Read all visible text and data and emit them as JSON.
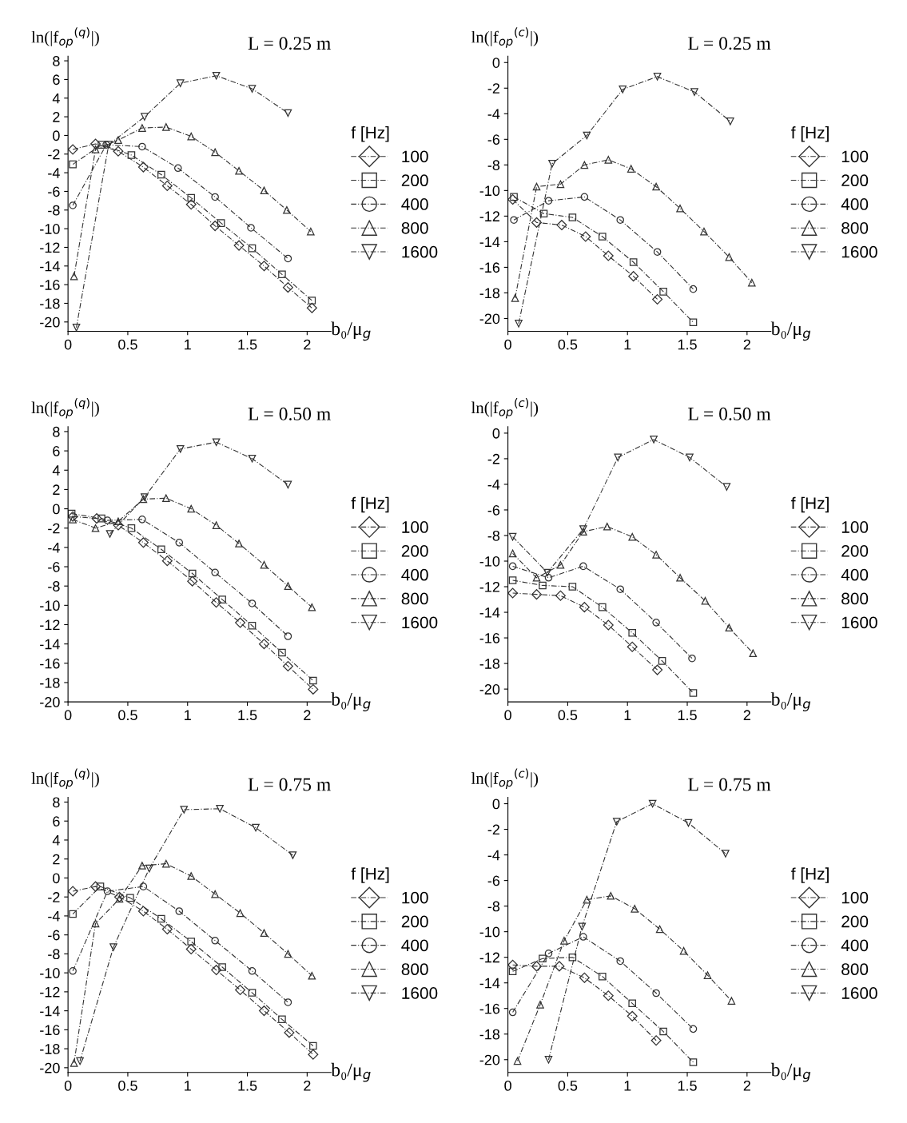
{
  "chart_data": [
    {
      "type": "line",
      "title": "L = 0.25 m",
      "ylabel": "ln(|f$_{op}$$^{(q)}$|)",
      "xlabel": "b₀/μ$_{g}$",
      "legend_title": "f [Hz]",
      "legend": "right",
      "line_style": "dashed",
      "grid": false,
      "xlim": [
        0,
        2.2
      ],
      "xticks": [
        0,
        0.5,
        1,
        1.5,
        2
      ],
      "ylim": [
        -21,
        8.5
      ],
      "yticks": [
        -20,
        -18,
        -16,
        -14,
        -12,
        -10,
        -8,
        -6,
        -4,
        -2,
        0,
        2,
        4,
        6,
        8
      ],
      "series": [
        {
          "name": "100",
          "color": "#333333",
          "marker": "diamond",
          "x": [
            0.04,
            0.23,
            0.42,
            0.63,
            0.83,
            1.03,
            1.23,
            1.43,
            1.64,
            1.84,
            2.04
          ],
          "values": [
            -1.5,
            -0.9,
            -1.7,
            -3.4,
            -5.4,
            -7.4,
            -9.7,
            -11.8,
            -14.0,
            -16.3,
            -18.5
          ]
        },
        {
          "name": "200",
          "color": "#333333",
          "marker": "square",
          "x": [
            0.04,
            0.28,
            0.53,
            0.78,
            1.03,
            1.28,
            1.54,
            1.79,
            2.04
          ],
          "values": [
            -3.1,
            -1.0,
            -2.1,
            -4.2,
            -6.7,
            -9.4,
            -12.1,
            -14.9,
            -17.7
          ]
        },
        {
          "name": "400",
          "color": "#333333",
          "marker": "circle",
          "x": [
            0.04,
            0.32,
            0.62,
            0.92,
            1.23,
            1.53,
            1.84
          ],
          "values": [
            -7.5,
            -1.0,
            -1.2,
            -3.5,
            -6.6,
            -9.9,
            -13.2
          ]
        },
        {
          "name": "800",
          "color": "#333333",
          "marker": "triangle",
          "x": [
            0.05,
            0.23,
            0.42,
            0.62,
            0.82,
            1.03,
            1.23,
            1.43,
            1.64,
            1.83,
            2.03
          ],
          "values": [
            -15.1,
            -1.5,
            -0.5,
            0.8,
            0.9,
            -0.1,
            -1.8,
            -3.8,
            -5.9,
            -8.0,
            -10.3
          ]
        },
        {
          "name": "1600",
          "color": "#333333",
          "marker": "triangle_down",
          "x": [
            0.07,
            0.34,
            0.64,
            0.94,
            1.24,
            1.54,
            1.84
          ],
          "values": [
            -20.6,
            -1.0,
            2.0,
            5.6,
            6.4,
            5.0,
            2.4
          ]
        }
      ]
    },
    {
      "type": "line",
      "title": "L = 0.25 m",
      "ylabel": "ln(|f$_{op}$$^{(c)}$|)",
      "xlabel": "b₀/μ$_{g}$",
      "legend_title": "f [Hz]",
      "legend": "right",
      "line_style": "dashed",
      "grid": false,
      "xlim": [
        0,
        2.2
      ],
      "xticks": [
        0,
        0.5,
        1,
        1.5,
        2
      ],
      "ylim": [
        -21,
        0.5
      ],
      "yticks": [
        -20,
        -18,
        -16,
        -14,
        -12,
        -10,
        -8,
        -6,
        -4,
        -2,
        0
      ],
      "series": [
        {
          "name": "100",
          "color": "#333333",
          "marker": "diamond",
          "x": [
            0.04,
            0.24,
            0.45,
            0.65,
            0.84,
            1.05,
            1.25
          ],
          "values": [
            -10.7,
            -12.5,
            -12.7,
            -13.6,
            -15.1,
            -16.7,
            -18.5
          ]
        },
        {
          "name": "200",
          "color": "#333333",
          "marker": "square",
          "x": [
            0.05,
            0.3,
            0.54,
            0.79,
            1.05,
            1.3,
            1.55
          ],
          "values": [
            -10.5,
            -11.8,
            -12.1,
            -13.6,
            -15.6,
            -17.9,
            -20.3
          ]
        },
        {
          "name": "400",
          "color": "#333333",
          "marker": "circle",
          "x": [
            0.05,
            0.34,
            0.64,
            0.94,
            1.25,
            1.55
          ],
          "values": [
            -12.3,
            -10.8,
            -10.5,
            -12.3,
            -14.8,
            -17.7
          ]
        },
        {
          "name": "800",
          "color": "#333333",
          "marker": "triangle",
          "x": [
            0.06,
            0.24,
            0.44,
            0.64,
            0.84,
            1.03,
            1.24,
            1.44,
            1.64,
            1.85,
            2.04
          ],
          "values": [
            -18.4,
            -9.7,
            -9.5,
            -8.0,
            -7.6,
            -8.3,
            -9.7,
            -11.4,
            -13.2,
            -15.2,
            -17.2
          ]
        },
        {
          "name": "1600",
          "color": "#333333",
          "marker": "triangle_down",
          "x": [
            0.09,
            0.37,
            0.66,
            0.96,
            1.25,
            1.56,
            1.86
          ],
          "values": [
            -20.4,
            -7.9,
            -5.7,
            -2.1,
            -1.1,
            -2.3,
            -4.6
          ]
        }
      ]
    },
    {
      "type": "line",
      "title": "L = 0.50 m",
      "ylabel": "ln(|f$_{op}$$^{(q)}$|)",
      "xlabel": "b₀/μ$_{g}$",
      "legend_title": "f [Hz]",
      "legend": "right",
      "line_style": "dashed",
      "grid": false,
      "xlim": [
        0,
        2.2
      ],
      "xticks": [
        0,
        0.5,
        1,
        1.5,
        2
      ],
      "ylim": [
        -20,
        8.5
      ],
      "yticks": [
        -20,
        -18,
        -16,
        -14,
        -12,
        -10,
        -8,
        -6,
        -4,
        -2,
        0,
        2,
        4,
        6,
        8
      ],
      "series": [
        {
          "name": "100",
          "color": "#333333",
          "marker": "diamond",
          "x": [
            0.04,
            0.24,
            0.42,
            0.63,
            0.83,
            1.04,
            1.24,
            1.44,
            1.64,
            1.84,
            2.05
          ],
          "values": [
            -0.8,
            -1.0,
            -1.7,
            -3.5,
            -5.4,
            -7.5,
            -9.7,
            -11.8,
            -14.0,
            -16.3,
            -18.7
          ]
        },
        {
          "name": "200",
          "color": "#333333",
          "marker": "square",
          "x": [
            0.03,
            0.28,
            0.53,
            0.78,
            1.04,
            1.29,
            1.54,
            1.79,
            2.05
          ],
          "values": [
            -0.5,
            -1.0,
            -2.0,
            -4.2,
            -6.7,
            -9.4,
            -12.1,
            -14.9,
            -17.8
          ]
        },
        {
          "name": "400",
          "color": "#333333",
          "marker": "circle",
          "x": [
            0.33,
            0.62,
            0.93,
            1.23,
            1.54,
            1.84
          ],
          "values": [
            -1.2,
            -1.1,
            -3.5,
            -6.6,
            -9.8,
            -13.2
          ]
        },
        {
          "name": "800",
          "color": "#333333",
          "marker": "triangle",
          "x": [
            0.04,
            0.23,
            0.42,
            0.63,
            0.82,
            1.03,
            1.24,
            1.43,
            1.64,
            1.84,
            2.04
          ],
          "values": [
            -1.1,
            -2.0,
            -1.3,
            1.0,
            1.1,
            0.0,
            -1.7,
            -3.6,
            -5.8,
            -8.0,
            -10.2
          ]
        },
        {
          "name": "1600",
          "color": "#333333",
          "marker": "triangle_down",
          "x": [
            0.35,
            0.64,
            0.94,
            1.24,
            1.54,
            1.84
          ],
          "values": [
            -2.6,
            1.2,
            6.2,
            6.9,
            5.2,
            2.5
          ]
        }
      ]
    },
    {
      "type": "line",
      "title": "L = 0.50 m",
      "ylabel": "ln(|f$_{op}$$^{(c)}$|)",
      "xlabel": "b₀/μ$_{g}$",
      "legend_title": "f [Hz]",
      "legend": "right",
      "line_style": "dashed",
      "grid": false,
      "xlim": [
        0,
        2.2
      ],
      "xticks": [
        0,
        0.5,
        1,
        1.5,
        2
      ],
      "ylim": [
        -21,
        0.5
      ],
      "yticks": [
        -20,
        -18,
        -16,
        -14,
        -12,
        -10,
        -8,
        -6,
        -4,
        -2,
        0
      ],
      "series": [
        {
          "name": "100",
          "color": "#333333",
          "marker": "diamond",
          "x": [
            0.04,
            0.24,
            0.44,
            0.64,
            0.84,
            1.04,
            1.25
          ],
          "values": [
            -12.5,
            -12.6,
            -12.7,
            -13.6,
            -15.0,
            -16.7,
            -18.5
          ]
        },
        {
          "name": "200",
          "color": "#333333",
          "marker": "square",
          "x": [
            0.04,
            0.29,
            0.54,
            0.79,
            1.04,
            1.29,
            1.55
          ],
          "values": [
            -11.5,
            -11.9,
            -12.0,
            -13.6,
            -15.6,
            -17.8,
            -20.3
          ]
        },
        {
          "name": "400",
          "color": "#333333",
          "marker": "circle",
          "x": [
            0.04,
            0.34,
            0.63,
            0.94,
            1.24,
            1.54
          ],
          "values": [
            -10.4,
            -11.3,
            -10.4,
            -12.2,
            -14.8,
            -17.6
          ]
        },
        {
          "name": "800",
          "color": "#333333",
          "marker": "triangle",
          "x": [
            0.04,
            0.24,
            0.44,
            0.63,
            0.83,
            1.04,
            1.24,
            1.44,
            1.65,
            1.85,
            2.05
          ],
          "values": [
            -9.4,
            -11.3,
            -10.3,
            -7.7,
            -7.3,
            -8.1,
            -9.5,
            -11.3,
            -13.1,
            -15.2,
            -17.2
          ]
        },
        {
          "name": "1600",
          "color": "#333333",
          "marker": "triangle_down",
          "x": [
            0.04,
            0.33,
            0.63,
            0.92,
            1.22,
            1.52,
            1.83
          ],
          "values": [
            -8.1,
            -10.9,
            -7.5,
            -1.9,
            -0.5,
            -1.9,
            -4.2
          ]
        }
      ]
    },
    {
      "type": "line",
      "title": "L = 0.75 m",
      "ylabel": "ln(|f$_{op}$$^{(q)}$|)",
      "xlabel": "b₀/μ$_{g}$",
      "legend_title": "f [Hz]",
      "legend": "right",
      "line_style": "dashed",
      "grid": false,
      "xlim": [
        0,
        2.2
      ],
      "xticks": [
        0,
        0.5,
        1,
        1.5,
        2
      ],
      "ylim": [
        -20.5,
        8.5
      ],
      "yticks": [
        -20,
        -18,
        -16,
        -14,
        -12,
        -10,
        -8,
        -6,
        -4,
        -2,
        0,
        2,
        4,
        6,
        8
      ],
      "series": [
        {
          "name": "100",
          "color": "#333333",
          "marker": "diamond",
          "x": [
            0.04,
            0.23,
            0.43,
            0.63,
            0.83,
            1.03,
            1.24,
            1.44,
            1.64,
            1.85,
            2.05
          ],
          "values": [
            -1.4,
            -0.9,
            -2.0,
            -3.5,
            -5.4,
            -7.5,
            -9.7,
            -11.8,
            -14.0,
            -16.3,
            -18.6
          ]
        },
        {
          "name": "200",
          "color": "#333333",
          "marker": "square",
          "x": [
            0.04,
            0.27,
            0.52,
            0.78,
            1.03,
            1.29,
            1.54,
            1.79,
            2.05
          ],
          "values": [
            -3.8,
            -0.9,
            -2.1,
            -4.3,
            -6.7,
            -9.4,
            -12.1,
            -14.9,
            -17.7
          ]
        },
        {
          "name": "400",
          "color": "#333333",
          "marker": "circle",
          "x": [
            0.04,
            0.33,
            0.63,
            0.93,
            1.23,
            1.54,
            1.84
          ],
          "values": [
            -9.8,
            -1.4,
            -0.9,
            -3.5,
            -6.6,
            -9.8,
            -13.1
          ]
        },
        {
          "name": "800",
          "color": "#333333",
          "marker": "triangle",
          "x": [
            0.05,
            0.23,
            0.43,
            0.62,
            0.82,
            1.03,
            1.23,
            1.44,
            1.64,
            1.84,
            2.04
          ],
          "values": [
            -19.5,
            -4.8,
            -2.2,
            1.3,
            1.5,
            0.2,
            -1.7,
            -3.7,
            -5.8,
            -8.0,
            -10.3
          ]
        },
        {
          "name": "1600",
          "color": "#333333",
          "marker": "triangle_down",
          "x": [
            0.1,
            0.38,
            0.68,
            0.97,
            1.27,
            1.57,
            1.88
          ],
          "values": [
            -19.3,
            -7.3,
            1.0,
            7.2,
            7.3,
            5.3,
            2.4
          ]
        }
      ]
    },
    {
      "type": "line",
      "title": "L = 0.75 m",
      "ylabel": "ln(|f$_{op}$$^{(c)}$|)",
      "xlabel": "b₀/μ$_{g}$",
      "legend_title": "f [Hz]",
      "legend": "right",
      "line_style": "dashed",
      "grid": false,
      "xlim": [
        0,
        2.2
      ],
      "xticks": [
        0,
        0.5,
        1,
        1.5,
        2
      ],
      "ylim": [
        -21,
        0.5
      ],
      "yticks": [
        -20,
        -18,
        -16,
        -14,
        -12,
        -10,
        -8,
        -6,
        -4,
        -2,
        0
      ],
      "series": [
        {
          "name": "100",
          "color": "#333333",
          "marker": "diamond",
          "x": [
            0.04,
            0.24,
            0.43,
            0.64,
            0.84,
            1.04,
            1.24
          ],
          "values": [
            -12.6,
            -12.7,
            -12.7,
            -13.6,
            -15.0,
            -16.6,
            -18.5
          ]
        },
        {
          "name": "200",
          "color": "#333333",
          "marker": "square",
          "x": [
            0.04,
            0.29,
            0.54,
            0.79,
            1.04,
            1.3,
            1.55
          ],
          "values": [
            -13.1,
            -12.1,
            -12.0,
            -13.5,
            -15.6,
            -17.8,
            -20.2
          ]
        },
        {
          "name": "400",
          "color": "#333333",
          "marker": "circle",
          "x": [
            0.04,
            0.34,
            0.63,
            0.94,
            1.24,
            1.55
          ],
          "values": [
            -16.3,
            -11.7,
            -10.4,
            -12.3,
            -14.8,
            -17.6
          ]
        },
        {
          "name": "800",
          "color": "#333333",
          "marker": "triangle",
          "x": [
            0.08,
            0.27,
            0.47,
            0.66,
            0.86,
            1.06,
            1.27,
            1.47,
            1.67,
            1.87
          ],
          "values": [
            -20.1,
            -15.7,
            -10.7,
            -7.5,
            -7.2,
            -8.2,
            -9.8,
            -11.5,
            -13.4,
            -15.4
          ]
        },
        {
          "name": "1600",
          "color": "#333333",
          "marker": "triangle_down",
          "x": [
            0.34,
            0.62,
            0.91,
            1.21,
            1.51,
            1.82
          ],
          "values": [
            -20.0,
            -9.6,
            -1.4,
            0.0,
            -1.5,
            -3.9
          ]
        }
      ]
    }
  ]
}
